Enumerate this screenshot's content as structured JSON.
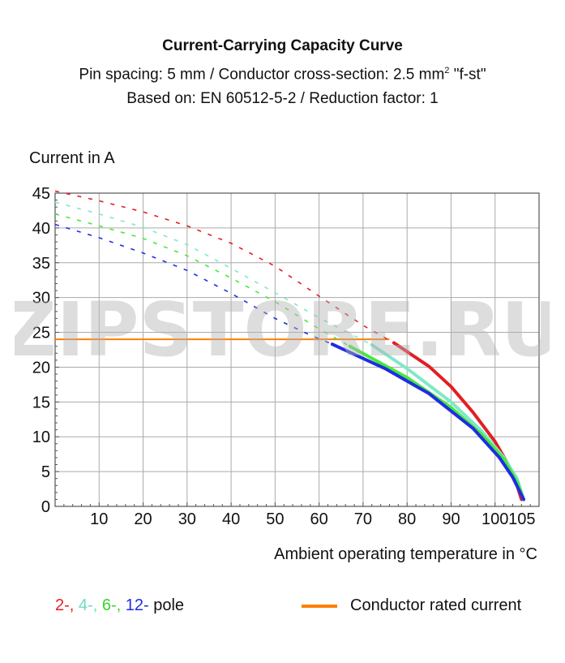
{
  "chart_data": {
    "type": "line",
    "title": "Current-Carrying Capacity Curve",
    "subtitle_lines": [
      "Pin spacing: 5 mm / Conductor cross-section: 2.5 mm",
      "Based on: EN 60512-5-2 / Reduction factor: 1"
    ],
    "subtitle_sup": "2",
    "subtitle_suffix": " \"f-st\"",
    "ylabel": "Current in A",
    "xlabel": "Ambient operating temperature in °C",
    "xlim": [
      0,
      110
    ],
    "ylim": [
      0,
      45
    ],
    "xticks": [
      10,
      20,
      30,
      40,
      50,
      60,
      70,
      80,
      90,
      100,
      105
    ],
    "yticks": [
      0,
      5,
      10,
      15,
      20,
      25,
      30,
      35,
      40,
      45
    ],
    "grid": true,
    "series": [
      {
        "name": "2-",
        "color": "#e31e24",
        "dashed": [
          [
            0,
            45.3
          ],
          [
            10,
            43.9
          ],
          [
            20,
            42.3
          ],
          [
            30,
            40.3
          ],
          [
            40,
            37.8
          ],
          [
            50,
            34.5
          ],
          [
            60,
            30.2
          ],
          [
            70,
            26.0
          ],
          [
            77,
            23.5
          ]
        ],
        "solid": [
          [
            77,
            23.5
          ],
          [
            85,
            20.1
          ],
          [
            90,
            17.2
          ],
          [
            95,
            13.5
          ],
          [
            100,
            9.3
          ],
          [
            103,
            6.0
          ],
          [
            105,
            3.0
          ],
          [
            106,
            1.0
          ]
        ]
      },
      {
        "name": "4-",
        "color": "#80e8c8",
        "dashed": [
          [
            0,
            43.7
          ],
          [
            10,
            42.0
          ],
          [
            20,
            40.1
          ],
          [
            30,
            37.6
          ],
          [
            40,
            34.2
          ],
          [
            50,
            30.7
          ],
          [
            60,
            27.1
          ],
          [
            72,
            23.2
          ]
        ],
        "solid": [
          [
            72,
            23.2
          ],
          [
            80,
            19.8
          ],
          [
            90,
            15.0
          ],
          [
            97,
            10.8
          ],
          [
            102,
            7.0
          ],
          [
            105,
            4.0
          ],
          [
            106.5,
            1.0
          ]
        ]
      },
      {
        "name": "6-",
        "color": "#46e83c",
        "dashed": [
          [
            0,
            42.0
          ],
          [
            10,
            40.3
          ],
          [
            20,
            38.5
          ],
          [
            30,
            36.0
          ],
          [
            40,
            32.8
          ],
          [
            50,
            29.4
          ],
          [
            60,
            25.5
          ],
          [
            67,
            23.0
          ]
        ],
        "solid": [
          [
            67,
            23.0
          ],
          [
            80,
            18.5
          ],
          [
            90,
            14.2
          ],
          [
            97,
            10.3
          ],
          [
            102,
            6.8
          ],
          [
            105,
            3.5
          ],
          [
            106.5,
            1.0
          ]
        ]
      },
      {
        "name": "12-",
        "color": "#1e2ee0",
        "dashed": [
          [
            0,
            40.5
          ],
          [
            10,
            38.6
          ],
          [
            20,
            36.4
          ],
          [
            30,
            33.9
          ],
          [
            40,
            30.6
          ],
          [
            50,
            27.0
          ],
          [
            58,
            24.6
          ],
          [
            63,
            23.3
          ]
        ],
        "solid": [
          [
            63,
            23.3
          ],
          [
            75,
            19.8
          ],
          [
            85,
            16.2
          ],
          [
            95,
            11.2
          ],
          [
            101,
            7.0
          ],
          [
            104,
            4.2
          ],
          [
            106.5,
            1.0
          ]
        ]
      }
    ],
    "rated_current": {
      "name": "Conductor rated current",
      "value": 24,
      "color": "#ff7f00",
      "x_end": 76
    }
  },
  "legend": {
    "pole_labels": [
      "2-",
      "4-",
      "6-",
      "12-"
    ],
    "pole_suffix": "pole",
    "rated_label": "Conductor rated current"
  },
  "watermark": "ZIPSTORE.RU"
}
